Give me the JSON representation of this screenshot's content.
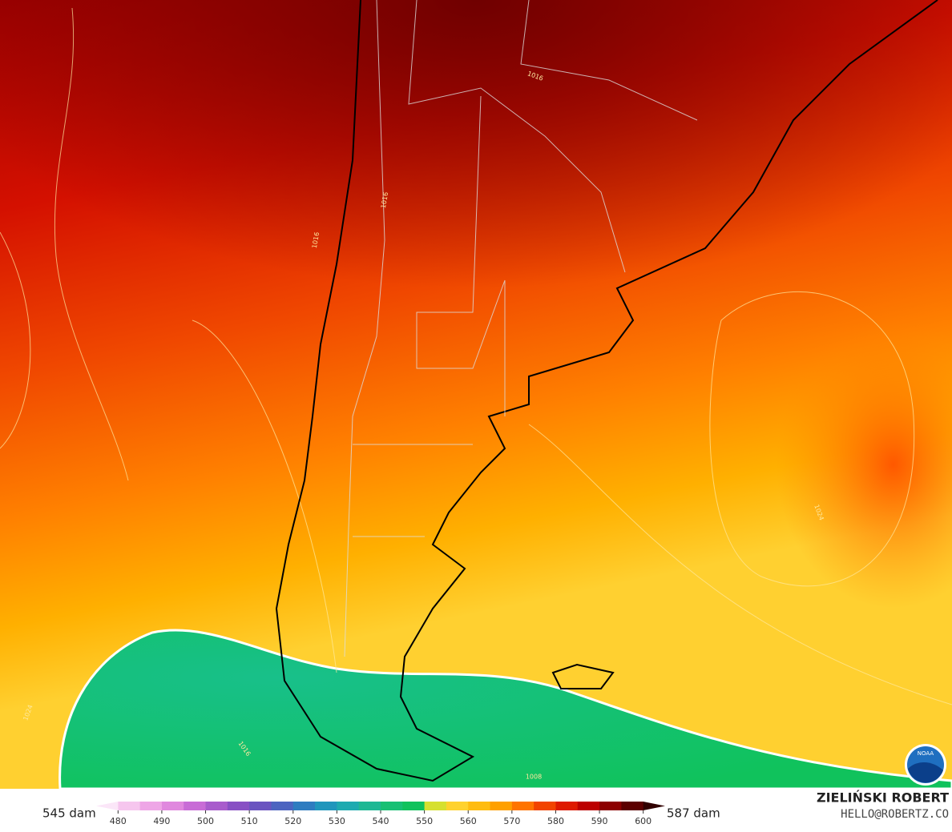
{
  "map": {
    "isobar_labels": [
      "1016",
      "1016",
      "1016",
      "1024",
      "1024",
      "1016",
      "1008"
    ]
  },
  "logo": "NOAA",
  "colorbar": {
    "min_label": "545 dam",
    "max_label": "587 dam",
    "ticks": [
      480,
      490,
      500,
      510,
      520,
      530,
      540,
      550,
      560,
      570,
      580,
      590,
      600
    ],
    "lim": [
      475,
      605
    ],
    "colors": [
      "#fbe6f8",
      "#f6c6ee",
      "#eea6e6",
      "#e088de",
      "#c86cd6",
      "#a85ccc",
      "#8850c4",
      "#6a54c0",
      "#4c64c0",
      "#2e7cc0",
      "#2096bc",
      "#1eaab0",
      "#1eb894",
      "#18c074",
      "#10c25c",
      "#d6e030",
      "#ffd22e",
      "#ffbc10",
      "#ffa000",
      "#ff7400",
      "#f24400",
      "#de1a00",
      "#bc0000",
      "#8c0000",
      "#5c0000",
      "#300000"
    ]
  },
  "credit": {
    "name": "ZIELIŃSKI ROBERT",
    "email": "HELLO@ROBERTZ.CO"
  }
}
